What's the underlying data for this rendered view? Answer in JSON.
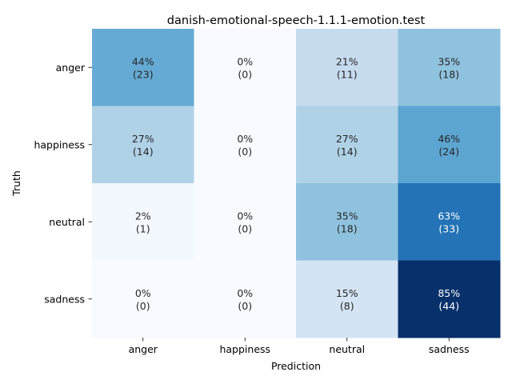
{
  "chart_data": {
    "type": "heatmap",
    "title": "danish-emotional-speech-1.1.1-emotion.test",
    "xlabel": "Prediction",
    "ylabel": "Truth",
    "x_categories": [
      "anger",
      "happiness",
      "neutral",
      "sadness"
    ],
    "y_categories": [
      "anger",
      "happiness",
      "neutral",
      "sadness"
    ],
    "percent": [
      [
        44,
        0,
        21,
        35
      ],
      [
        27,
        0,
        27,
        46
      ],
      [
        2,
        0,
        35,
        63
      ],
      [
        0,
        0,
        15,
        85
      ]
    ],
    "counts": [
      [
        23,
        0,
        11,
        18
      ],
      [
        14,
        0,
        14,
        24
      ],
      [
        1,
        0,
        18,
        33
      ],
      [
        0,
        0,
        8,
        44
      ]
    ],
    "labels": [
      [
        {
          "pct": "44%",
          "count": "(23)"
        },
        {
          "pct": "0%",
          "count": "(0)"
        },
        {
          "pct": "21%",
          "count": "(11)"
        },
        {
          "pct": "35%",
          "count": "(18)"
        }
      ],
      [
        {
          "pct": "27%",
          "count": "(14)"
        },
        {
          "pct": "0%",
          "count": "(0)"
        },
        {
          "pct": "27%",
          "count": "(14)"
        },
        {
          "pct": "46%",
          "count": "(24)"
        }
      ],
      [
        {
          "pct": "2%",
          "count": "(1)"
        },
        {
          "pct": "0%",
          "count": "(0)"
        },
        {
          "pct": "35%",
          "count": "(18)"
        },
        {
          "pct": "63%",
          "count": "(33)"
        }
      ],
      [
        {
          "pct": "0%",
          "count": "(0)"
        },
        {
          "pct": "0%",
          "count": "(0)"
        },
        {
          "pct": "15%",
          "count": "(8)"
        },
        {
          "pct": "85%",
          "count": "(44)"
        }
      ]
    ],
    "colormap": "Blues",
    "value_range": [
      0,
      85
    ],
    "colorbar": false,
    "grid": false
  }
}
